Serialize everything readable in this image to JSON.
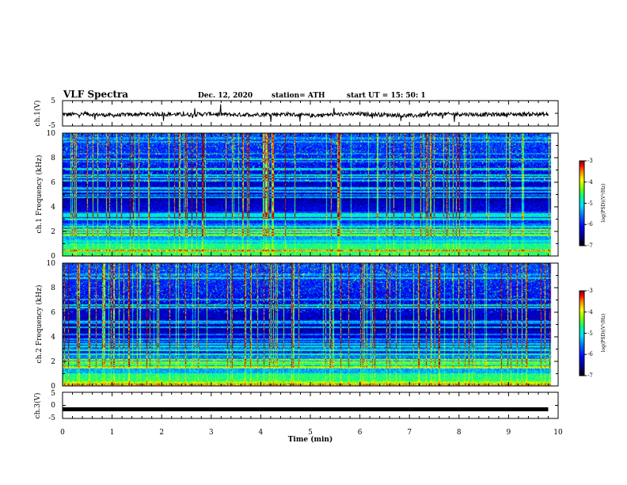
{
  "header": {
    "title": "VLF Spectra",
    "date": "Dec. 12, 2020",
    "station": "station= ATH",
    "start": "start  UT =   15: 50: 1"
  },
  "colors": {
    "palette": [
      "#000000",
      "#00008b",
      "#0000ff",
      "#0070ff",
      "#00dfff",
      "#00ff90",
      "#7cff00",
      "#ffff00",
      "#ff7f00",
      "#ff0000",
      "#8b0000"
    ]
  },
  "chart_data": [
    {
      "type": "line",
      "ylabel": "ch.1(V)",
      "ylim": [
        -5,
        5
      ],
      "yticks": [
        "5",
        "-5"
      ],
      "x": [
        0,
        0.5,
        1,
        1.5,
        2,
        2.5,
        3,
        3.5,
        4,
        4.5,
        5,
        5.5,
        6,
        6.5,
        7,
        7.5,
        8,
        8.5,
        9,
        9.5,
        9.8
      ],
      "values": [
        -0.5,
        -0.3,
        -0.8,
        -0.4,
        -0.3,
        -0.5,
        -0.2,
        -0.6,
        -0.4,
        -0.3,
        -0.9,
        -0.4,
        -0.3,
        -0.5,
        -1.0,
        -0.4,
        -0.3,
        -0.5,
        -0.4,
        -0.3,
        -0.5
      ]
    },
    {
      "type": "heatmap",
      "ylabel": "ch.1 Frequency (kHz)",
      "ylim": [
        0,
        10
      ],
      "yticks": [
        "0",
        "2",
        "4",
        "6",
        "8",
        "10"
      ],
      "colorbar_label": "log(PSD)(V²/Hz)",
      "colorbar_ticks": [
        "-3",
        "-4",
        "-5",
        "-6",
        "-7"
      ],
      "zlim": [
        -7,
        -3
      ]
    },
    {
      "type": "heatmap",
      "ylabel": "ch.2 Frequency (kHz)",
      "ylim": [
        0,
        10
      ],
      "yticks": [
        "0",
        "2",
        "4",
        "6",
        "8",
        "10"
      ],
      "colorbar_label": "log(PSD)(V²/Hz)",
      "colorbar_ticks": [
        "-3",
        "-4",
        "-5",
        "-6",
        "-7"
      ],
      "zlim": [
        -7,
        -3
      ]
    },
    {
      "type": "line",
      "ylabel": "ch.3(V)",
      "ylim": [
        -5,
        5
      ],
      "yticks": [
        "5",
        "0",
        "-5"
      ],
      "xlabel": "Time  (min)",
      "xlim": [
        0,
        10
      ],
      "xticks": [
        "0",
        "1",
        "2",
        "3",
        "4",
        "5",
        "6",
        "7",
        "8",
        "9",
        "10"
      ],
      "x": [
        0,
        9.8
      ],
      "values": [
        -1.5,
        -1.5
      ]
    }
  ]
}
